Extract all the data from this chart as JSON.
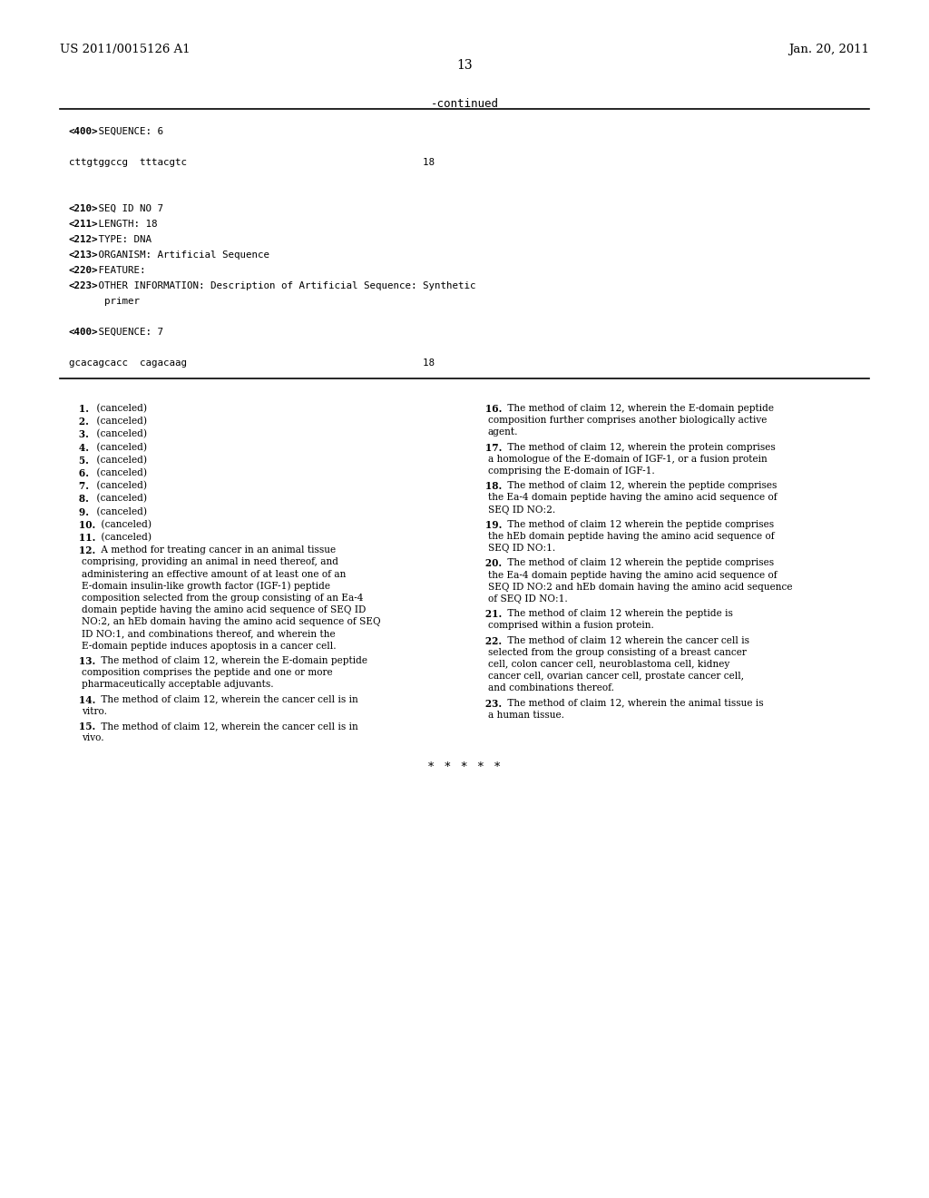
{
  "bg_color": "#ffffff",
  "header_left": "US 2011/0015126 A1",
  "header_right": "Jan. 20, 2011",
  "page_number": "13",
  "continued_label": "-continued",
  "seq_block_lines": [
    {
      "bold_part": "<400>",
      "rest": " SEQUENCE: 6",
      "type": "tag"
    },
    {
      "bold_part": "",
      "rest": "",
      "type": "blank"
    },
    {
      "bold_part": "",
      "rest": "cttgtggccg  tttacgtc                                        18",
      "type": "plain"
    },
    {
      "bold_part": "",
      "rest": "",
      "type": "blank"
    },
    {
      "bold_part": "",
      "rest": "",
      "type": "blank"
    },
    {
      "bold_part": "<210>",
      "rest": " SEQ ID NO 7",
      "type": "tag"
    },
    {
      "bold_part": "<211>",
      "rest": " LENGTH: 18",
      "type": "tag"
    },
    {
      "bold_part": "<212>",
      "rest": " TYPE: DNA",
      "type": "tag"
    },
    {
      "bold_part": "<213>",
      "rest": " ORGANISM: Artificial Sequence",
      "type": "tag"
    },
    {
      "bold_part": "<220>",
      "rest": " FEATURE:",
      "type": "tag"
    },
    {
      "bold_part": "<223>",
      "rest": " OTHER INFORMATION: Description of Artificial Sequence: Synthetic",
      "type": "tag"
    },
    {
      "bold_part": "",
      "rest": "      primer",
      "type": "plain"
    },
    {
      "bold_part": "",
      "rest": "",
      "type": "blank"
    },
    {
      "bold_part": "<400>",
      "rest": " SEQUENCE: 7",
      "type": "tag"
    },
    {
      "bold_part": "",
      "rest": "",
      "type": "blank"
    },
    {
      "bold_part": "",
      "rest": "gcacagcacc  cagacaag                                        18",
      "type": "plain"
    }
  ],
  "left_claims": [
    {
      "num": "1",
      "text": "(canceled)",
      "simple": true
    },
    {
      "num": "2",
      "text": "(canceled)",
      "simple": true
    },
    {
      "num": "3",
      "text": "(canceled)",
      "simple": true
    },
    {
      "num": "4",
      "text": "(canceled)",
      "simple": true
    },
    {
      "num": "5",
      "text": "(canceled)",
      "simple": true
    },
    {
      "num": "6",
      "text": "(canceled)",
      "simple": true
    },
    {
      "num": "7",
      "text": "(canceled)",
      "simple": true
    },
    {
      "num": "8",
      "text": "(canceled)",
      "simple": true
    },
    {
      "num": "9",
      "text": "(canceled)",
      "simple": true
    },
    {
      "num": "10",
      "text": "(canceled)",
      "simple": true
    },
    {
      "num": "11",
      "text": "(canceled)",
      "simple": true
    },
    {
      "num": "12",
      "text": "A method for treating cancer in an animal tissue comprising, providing an animal in need thereof, and administering an effective amount of at least one of an E-domain insulin-like growth factor (IGF-1) peptide composition selected from the group consisting of an Ea-4 domain peptide having the amino acid sequence of SEQ ID NO:2, an hEb domain having the amino acid sequence of SEQ ID NO:1, and combinations thereof, and wherein the E-domain peptide induces apoptosis in a cancer cell.",
      "simple": false
    },
    {
      "num": "13",
      "text": "The method of claim 12, wherein the E-domain peptide composition comprises the peptide and one or more pharmaceutically acceptable adjuvants.",
      "simple": false
    },
    {
      "num": "14",
      "text": "The method of claim 12, wherein the cancer cell is in vitro.",
      "simple": false
    },
    {
      "num": "15",
      "text": "The method of claim 12, wherein the cancer cell is in vivo.",
      "simple": false
    }
  ],
  "right_claims": [
    {
      "num": "16",
      "text": "The method of claim 12, wherein the E-domain peptide composition further comprises another biologically active agent.",
      "simple": false
    },
    {
      "num": "17",
      "text": "The method of claim 12, wherein the protein comprises a homologue of the E-domain of IGF-1, or a fusion protein comprising the E-domain of IGF-1.",
      "simple": false
    },
    {
      "num": "18",
      "text": "The method of claim 12, wherein the peptide comprises the Ea-4 domain peptide having the amino acid sequence of SEQ ID NO:2.",
      "simple": false
    },
    {
      "num": "19",
      "text": "The method of claim 12 wherein the peptide comprises the hEb domain peptide having the amino acid sequence of SEQ ID NO:1.",
      "simple": false
    },
    {
      "num": "20",
      "text": "The method of claim 12 wherein the peptide comprises the Ea-4 domain peptide having the amino acid sequence of SEQ ID NO:2 and hEb domain having the amino acid sequence of SEQ ID NO:1.",
      "simple": false
    },
    {
      "num": "21",
      "text": "The method of claim 12 wherein the peptide is comprised within a fusion protein.",
      "simple": false
    },
    {
      "num": "22",
      "text": "The method of claim 12 wherein the cancer cell is selected from the group consisting of a breast cancer cell, colon cancer cell, neuroblastoma cell, kidney cancer cell, ovarian cancer cell, prostate cancer cell, and combinations thereof.",
      "simple": false
    },
    {
      "num": "23",
      "text": "The method of claim 12, wherein the animal tissue is a human tissue.",
      "simple": false
    }
  ],
  "stars": "*   *   *   *   *"
}
